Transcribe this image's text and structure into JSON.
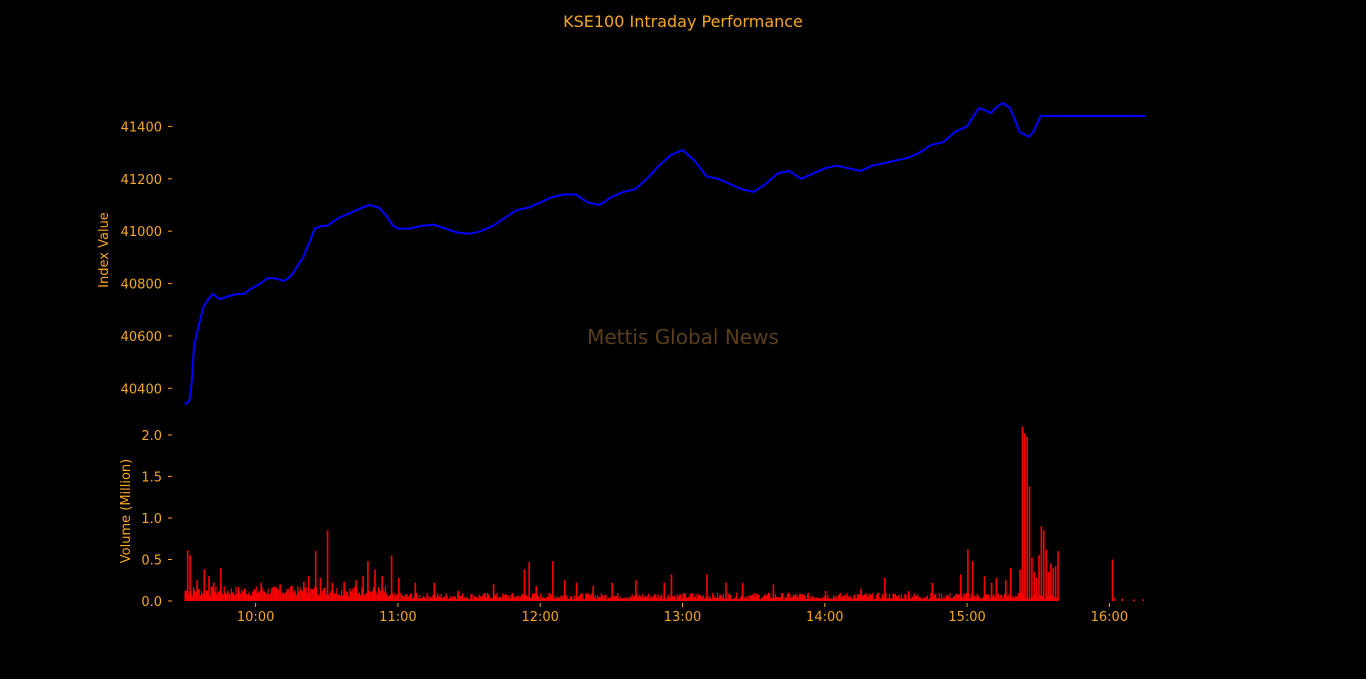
{
  "chart_data": {
    "type": "line",
    "title": "KSE100 Intraday Performance",
    "watermark": "Mettis Global News",
    "colors": {
      "background": "#000000",
      "text": "#f5a623",
      "line": "#0000ff",
      "volume": "#ff0000",
      "watermark": "#5a3d1a"
    },
    "price_panel": {
      "ylabel": "Index Value",
      "ylim": [
        40340,
        41520
      ],
      "yticks": [
        40400,
        40600,
        40800,
        41000,
        41200,
        41400
      ],
      "series": [
        {
          "time": [
            "09:30",
            "09:32",
            "09:33",
            "09:34",
            "09:36",
            "09:38",
            "09:40",
            "09:42",
            "09:45",
            "09:48",
            "09:52",
            "09:55",
            "09:58",
            "10:02",
            "10:05",
            "10:08",
            "10:12",
            "10:15",
            "10:20",
            "10:25",
            "10:28",
            "10:30",
            "10:35",
            "10:40",
            "10:45",
            "10:48",
            "10:52",
            "10:55",
            "10:58",
            "11:00",
            "11:05",
            "11:10",
            "11:15",
            "11:20",
            "11:25",
            "11:30",
            "11:35",
            "11:40",
            "11:45",
            "11:50",
            "11:55",
            "12:00",
            "12:05",
            "12:10",
            "12:15",
            "12:20",
            "12:25",
            "12:30",
            "12:35",
            "12:40",
            "12:45",
            "12:50",
            "12:55",
            "13:00",
            "13:05",
            "13:10",
            "13:15",
            "13:20",
            "13:25",
            "13:30",
            "13:35",
            "13:40",
            "13:45",
            "13:50",
            "13:55",
            "14:00",
            "14:05",
            "14:10",
            "14:15",
            "14:20",
            "14:25",
            "14:30",
            "14:35",
            "14:40",
            "14:45",
            "14:50",
            "14:55",
            "15:00",
            "15:02",
            "15:05",
            "15:08",
            "15:10",
            "15:12",
            "15:15",
            "15:18",
            "15:20",
            "15:22",
            "15:24",
            "15:26",
            "15:27",
            "15:28",
            "15:30",
            "15:31",
            "15:35",
            "15:45",
            "16:00",
            "16:15"
          ],
          "values": [
            40340,
            40350,
            40420,
            40560,
            40640,
            40710,
            40740,
            40760,
            40740,
            40750,
            40760,
            40760,
            40780,
            40800,
            40820,
            40820,
            40810,
            40830,
            40900,
            41010,
            41020,
            41020,
            41050,
            41070,
            41090,
            41100,
            41090,
            41060,
            41020,
            41010,
            41010,
            41020,
            41025,
            41010,
            40995,
            40990,
            41000,
            41020,
            41050,
            41080,
            41090,
            41110,
            41130,
            41140,
            41140,
            41110,
            41100,
            41130,
            41150,
            41160,
            41200,
            41250,
            41290,
            41310,
            41270,
            41210,
            41200,
            41180,
            41160,
            41150,
            41180,
            41220,
            41230,
            41200,
            41220,
            41240,
            41250,
            41240,
            41230,
            41250,
            41260,
            41270,
            41280,
            41300,
            41330,
            41340,
            41380,
            41400,
            41430,
            41470,
            41460,
            41450,
            41470,
            41490,
            41470,
            41430,
            41380,
            41370,
            41360,
            41370,
            41380,
            41420,
            41440,
            41440,
            41440,
            41440,
            41440
          ]
        }
      ]
    },
    "volume_panel": {
      "ylabel": "Volume (Million)",
      "ylim": [
        0,
        2.12
      ],
      "yticks": [
        "0.0",
        "0.5",
        "1.0",
        "1.5",
        "2.0"
      ],
      "ytick_values": [
        0,
        0.5,
        1.0,
        1.5,
        2.0
      ],
      "spikes": [
        {
          "time": "09:30",
          "value": 0.12
        },
        {
          "time": "09:31",
          "value": 0.61
        },
        {
          "time": "09:32",
          "value": 0.55
        },
        {
          "time": "09:35",
          "value": 0.25
        },
        {
          "time": "09:38",
          "value": 0.38
        },
        {
          "time": "09:40",
          "value": 0.3
        },
        {
          "time": "09:42",
          "value": 0.22
        },
        {
          "time": "09:45",
          "value": 0.4
        },
        {
          "time": "10:02",
          "value": 0.22
        },
        {
          "time": "10:10",
          "value": 0.2
        },
        {
          "time": "10:15",
          "value": 0.18
        },
        {
          "time": "10:20",
          "value": 0.23
        },
        {
          "time": "10:22",
          "value": 0.3
        },
        {
          "time": "10:25",
          "value": 0.6
        },
        {
          "time": "10:27",
          "value": 0.28
        },
        {
          "time": "10:30",
          "value": 0.85
        },
        {
          "time": "10:32",
          "value": 0.22
        },
        {
          "time": "10:37",
          "value": 0.23
        },
        {
          "time": "10:42",
          "value": 0.25
        },
        {
          "time": "10:45",
          "value": 0.3
        },
        {
          "time": "10:47",
          "value": 0.48
        },
        {
          "time": "10:50",
          "value": 0.38
        },
        {
          "time": "10:53",
          "value": 0.3
        },
        {
          "time": "10:57",
          "value": 0.55
        },
        {
          "time": "11:00",
          "value": 0.28
        },
        {
          "time": "11:07",
          "value": 0.22
        },
        {
          "time": "11:15",
          "value": 0.22
        },
        {
          "time": "11:25",
          "value": 0.12
        },
        {
          "time": "11:40",
          "value": 0.2
        },
        {
          "time": "11:53",
          "value": 0.38
        },
        {
          "time": "11:55",
          "value": 0.47
        },
        {
          "time": "11:58",
          "value": 0.18
        },
        {
          "time": "12:05",
          "value": 0.48
        },
        {
          "time": "12:10",
          "value": 0.25
        },
        {
          "time": "12:15",
          "value": 0.22
        },
        {
          "time": "12:22",
          "value": 0.18
        },
        {
          "time": "12:30",
          "value": 0.22
        },
        {
          "time": "12:40",
          "value": 0.25
        },
        {
          "time": "12:52",
          "value": 0.22
        },
        {
          "time": "12:55",
          "value": 0.32
        },
        {
          "time": "13:10",
          "value": 0.32
        },
        {
          "time": "13:18",
          "value": 0.22
        },
        {
          "time": "13:25",
          "value": 0.22
        },
        {
          "time": "13:38",
          "value": 0.2
        },
        {
          "time": "14:00",
          "value": 0.12
        },
        {
          "time": "14:15",
          "value": 0.15
        },
        {
          "time": "14:25",
          "value": 0.28
        },
        {
          "time": "14:35",
          "value": 0.12
        },
        {
          "time": "14:45",
          "value": 0.22
        },
        {
          "time": "14:57",
          "value": 0.32
        },
        {
          "time": "15:00",
          "value": 0.62
        },
        {
          "time": "15:02",
          "value": 0.48
        },
        {
          "time": "15:07",
          "value": 0.3
        },
        {
          "time": "15:10",
          "value": 0.22
        },
        {
          "time": "15:12",
          "value": 0.28
        },
        {
          "time": "15:16",
          "value": 0.25
        },
        {
          "time": "15:18",
          "value": 0.4
        },
        {
          "time": "15:22",
          "value": 0.38
        },
        {
          "time": "15:23",
          "value": 2.1
        },
        {
          "time": "15:24",
          "value": 2.02
        },
        {
          "time": "15:25",
          "value": 1.98
        },
        {
          "time": "15:26",
          "value": 1.38
        },
        {
          "time": "15:27",
          "value": 0.52
        },
        {
          "time": "15:28",
          "value": 0.35
        },
        {
          "time": "15:29",
          "value": 0.28
        },
        {
          "time": "15:30",
          "value": 0.55
        },
        {
          "time": "15:31",
          "value": 0.9
        },
        {
          "time": "15:32",
          "value": 0.85
        },
        {
          "time": "15:33",
          "value": 0.62
        },
        {
          "time": "15:34",
          "value": 0.35
        },
        {
          "time": "15:35",
          "value": 0.45
        },
        {
          "time": "15:36",
          "value": 0.4
        },
        {
          "time": "15:37",
          "value": 0.42
        },
        {
          "time": "15:38",
          "value": 0.6
        },
        {
          "time": "16:01",
          "value": 0.5
        },
        {
          "time": "16:02",
          "value": 0.03
        },
        {
          "time": "16:05",
          "value": 0.03
        },
        {
          "time": "16:10",
          "value": 0.02
        },
        {
          "time": "16:14",
          "value": 0.02
        }
      ],
      "baseline_range": [
        "09:30",
        "15:38"
      ]
    },
    "x_axis": {
      "xlim": [
        "09:26",
        "16:34"
      ],
      "ticks": [
        "10:00",
        "11:00",
        "12:00",
        "13:00",
        "14:00",
        "15:00",
        "16:00"
      ]
    },
    "grid": false,
    "legend": "none"
  }
}
